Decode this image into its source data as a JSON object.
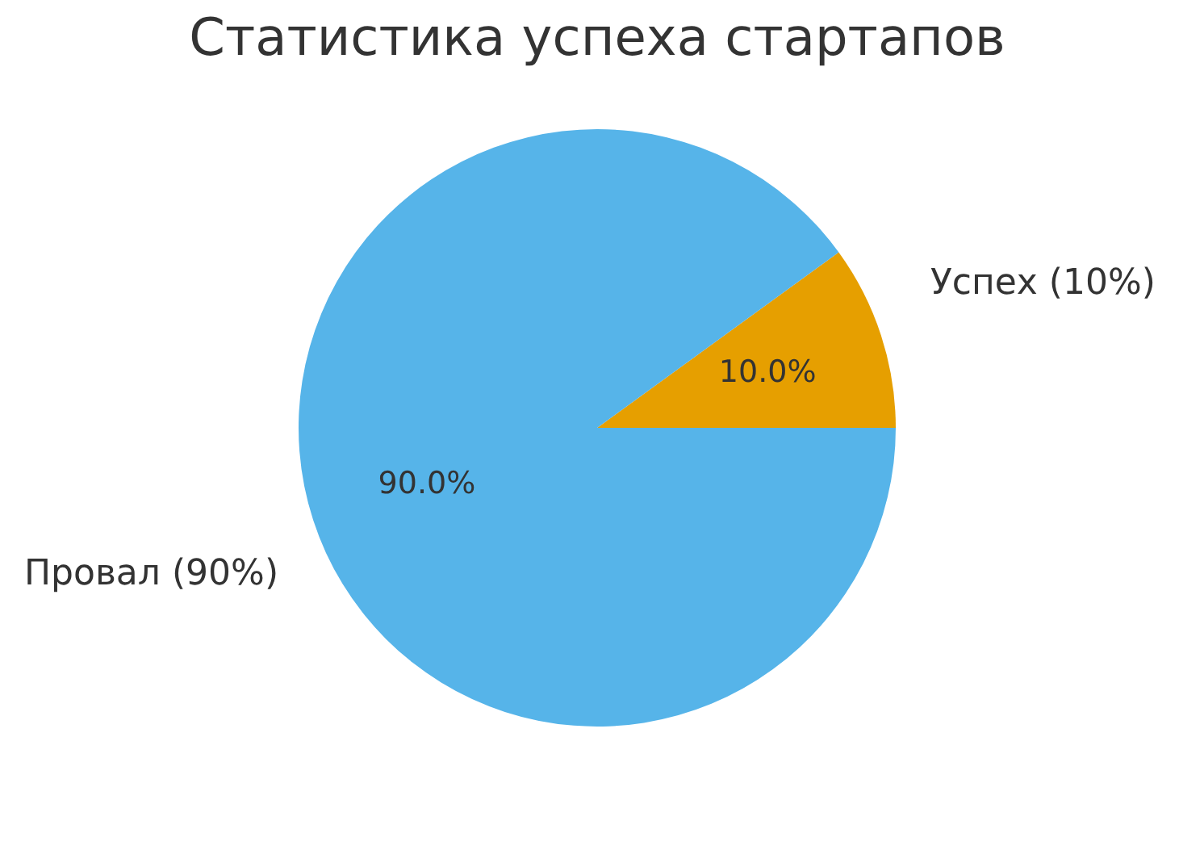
{
  "chart_data": {
    "type": "pie",
    "title": "Статистика успеха стартапов",
    "categories": [
      "Успех (10%)",
      "Провал (90%)"
    ],
    "values": [
      10,
      90
    ],
    "colors": [
      "#e69f00",
      "#56b4e9"
    ],
    "value_labels": [
      "10.0%",
      "90.0%"
    ]
  }
}
